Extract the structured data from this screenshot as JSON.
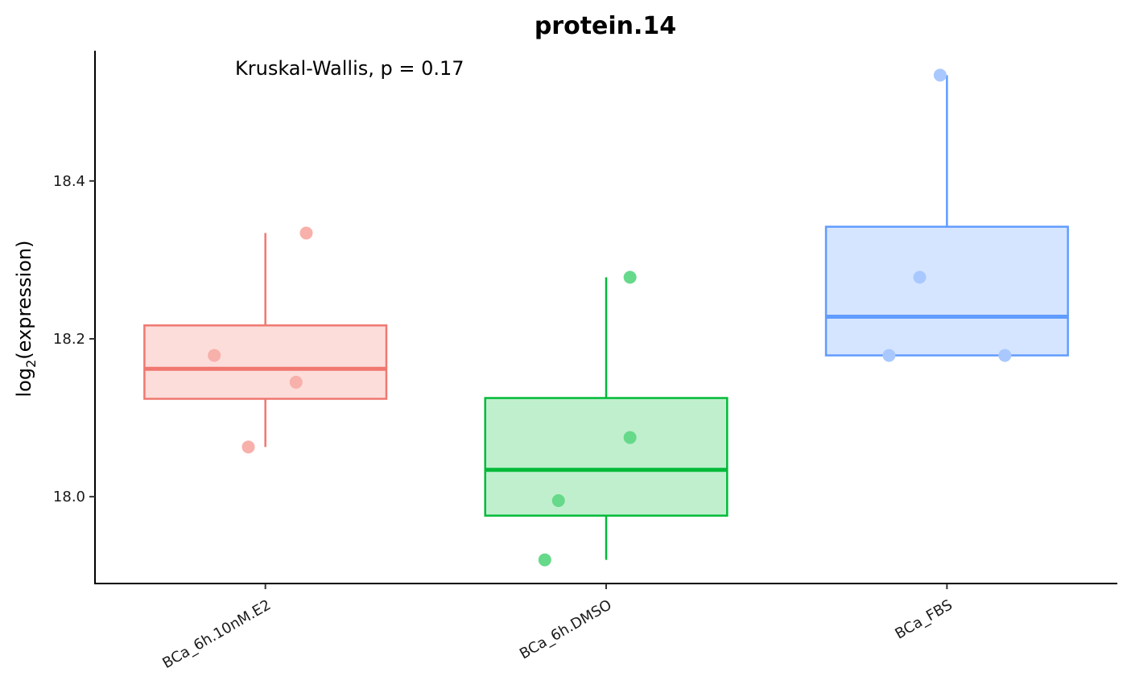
{
  "chart_data": {
    "type": "box",
    "title": "protein.14",
    "annotation": "Kruskal-Wallis, p = 0.17",
    "ylabel_main": "log",
    "ylabel_sub": "2",
    "ylabel_rest": "(expression)",
    "xlabel": "",
    "ylim": [
      17.89,
      18.565
    ],
    "yticks": [
      18.0,
      18.2,
      18.4
    ],
    "ytick_labels": [
      "18.0",
      "18.2",
      "18.4"
    ],
    "grid": false,
    "legend": "none",
    "categories": [
      "BCa_6h.10nM.E2",
      "BCa_6h.DMSO",
      "BCa_FBS"
    ],
    "boxes": [
      {
        "category": "BCa_6h.10nM.E2",
        "lower_whisker": 18.063,
        "q1": 18.124,
        "median": 18.162,
        "q3": 18.217,
        "upper_whisker": 18.334,
        "line_color": "#F07870",
        "fill_color": "#FCDDDA",
        "point_color": "#F8B0AA"
      },
      {
        "category": "BCa_6h.DMSO",
        "lower_whisker": 17.92,
        "q1": 17.976,
        "median": 18.034,
        "q3": 18.125,
        "upper_whisker": 18.278,
        "line_color": "#00BA38",
        "fill_color": "#C0EFCE",
        "point_color": "#66D98A"
      },
      {
        "category": "BCa_FBS",
        "lower_whisker": 18.179,
        "q1": 18.179,
        "median": 18.228,
        "q3": 18.342,
        "upper_whisker": 18.534,
        "line_color": "#619CFF",
        "fill_color": "#D6E5FF",
        "point_color": "#A8C8FF"
      }
    ],
    "points": [
      {
        "category": "BCa_6h.10nM.E2",
        "jitter": 0.12,
        "y": 18.334
      },
      {
        "category": "BCa_6h.10nM.E2",
        "jitter": -0.15,
        "y": 18.179
      },
      {
        "category": "BCa_6h.10nM.E2",
        "jitter": 0.09,
        "y": 18.145
      },
      {
        "category": "BCa_6h.10nM.E2",
        "jitter": -0.05,
        "y": 18.063
      },
      {
        "category": "BCa_6h.DMSO",
        "jitter": 0.07,
        "y": 18.278
      },
      {
        "category": "BCa_6h.DMSO",
        "jitter": 0.07,
        "y": 18.075
      },
      {
        "category": "BCa_6h.DMSO",
        "jitter": -0.14,
        "y": 17.995
      },
      {
        "category": "BCa_6h.DMSO",
        "jitter": -0.18,
        "y": 17.92
      },
      {
        "category": "BCa_FBS",
        "jitter": -0.02,
        "y": 18.534
      },
      {
        "category": "BCa_FBS",
        "jitter": -0.08,
        "y": 18.278
      },
      {
        "category": "BCa_FBS",
        "jitter": -0.17,
        "y": 18.179
      },
      {
        "category": "BCa_FBS",
        "jitter": 0.17,
        "y": 18.179
      }
    ]
  }
}
